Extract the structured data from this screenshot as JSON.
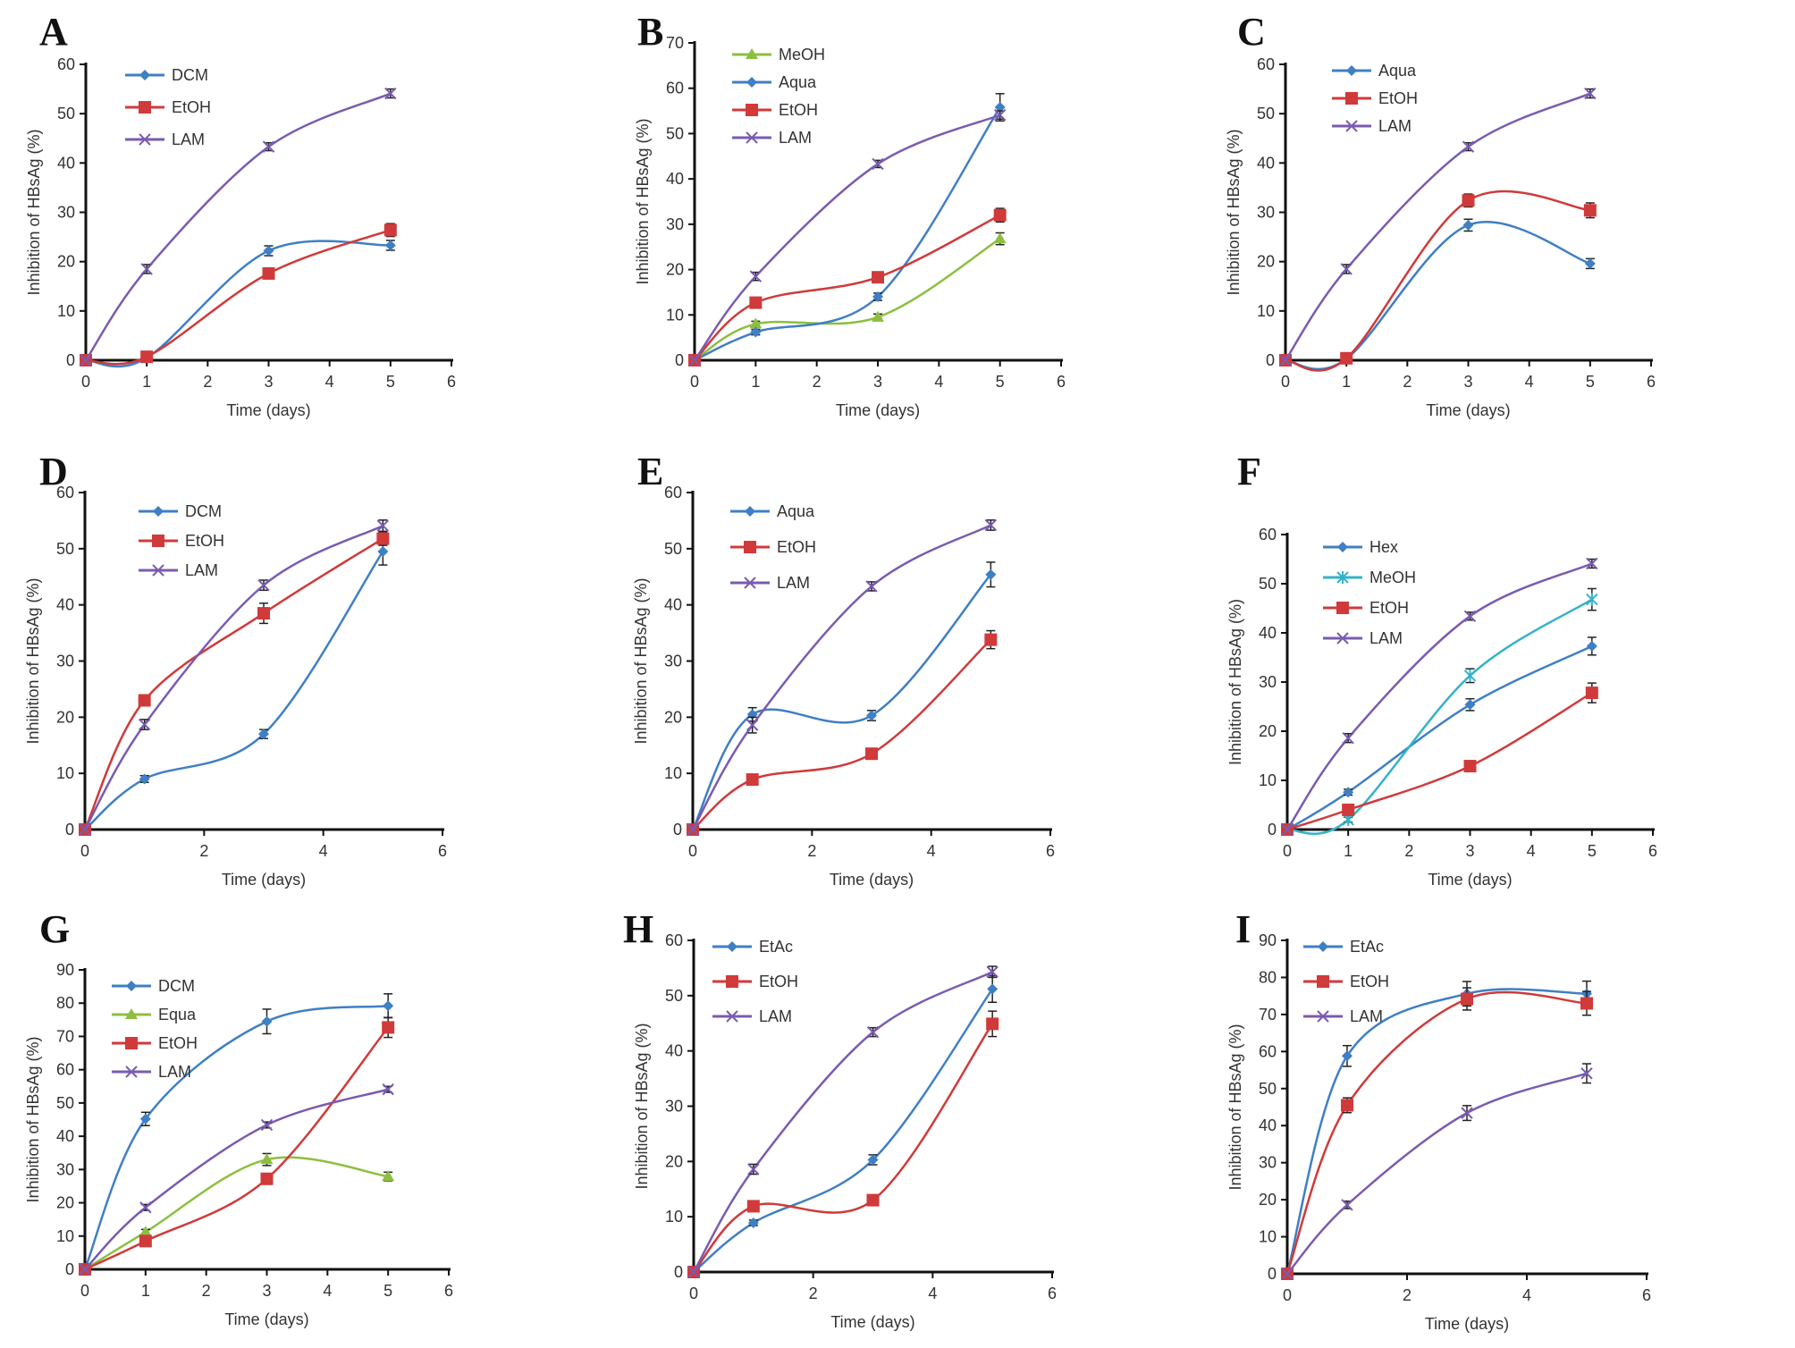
{
  "figure": {
    "series_styles": {
      "DCM": {
        "color": "#3f7fc4",
        "marker": "diamond"
      },
      "Hex": {
        "color": "#3f7fc4",
        "marker": "diamond"
      },
      "EtAc": {
        "color": "#3f7fc4",
        "marker": "diamond"
      },
      "Aqua": {
        "color": "#3f7fc4",
        "marker": "diamond"
      },
      "EtOH": {
        "color": "#d03a3a",
        "marker": "square"
      },
      "LAM": {
        "color": "#7a5bb0",
        "marker": "x"
      },
      "MeOH_green": {
        "color": "#8cbf3f",
        "marker": "triangle"
      },
      "Equa": {
        "color": "#8cbf3f",
        "marker": "triangle"
      },
      "MeOH_cyan": {
        "color": "#35b2c8",
        "marker": "star"
      }
    }
  },
  "chart_data": [
    {
      "panel": "A",
      "type": "line",
      "title": "",
      "xlabel": "Time (days)",
      "ylabel": "Inhibition of HBsAg (%)",
      "xlim": [
        0,
        6
      ],
      "ylim": [
        0,
        60
      ],
      "xticks": [
        0,
        1,
        2,
        3,
        4,
        5,
        6
      ],
      "yticks": [
        0,
        10,
        20,
        30,
        40,
        50,
        60
      ],
      "x": [
        0,
        1,
        3,
        5
      ],
      "legend_position": "top-left",
      "series": [
        {
          "name": "DCM",
          "style": "DCM",
          "values": [
            0,
            0.5,
            22.2,
            23.3
          ],
          "errors": [
            0,
            0.5,
            1.0,
            1.0
          ]
        },
        {
          "name": "EtOH",
          "style": "EtOH",
          "values": [
            0,
            0.7,
            17.6,
            26.4
          ],
          "errors": [
            0,
            0.5,
            0.8,
            1.3
          ]
        },
        {
          "name": "LAM",
          "style": "LAM",
          "values": [
            0,
            18.5,
            43.3,
            54.1
          ],
          "errors": [
            0,
            0.9,
            0.8,
            0.9
          ]
        }
      ]
    },
    {
      "panel": "B",
      "type": "line",
      "title": "",
      "xlabel": "Time (days)",
      "ylabel": "Inhibition of HBsAg (%)",
      "xlim": [
        0,
        6
      ],
      "ylim": [
        0,
        70
      ],
      "xticks": [
        0,
        1,
        2,
        3,
        4,
        5,
        6
      ],
      "yticks": [
        0,
        10,
        20,
        30,
        40,
        50,
        60,
        70
      ],
      "x": [
        0,
        1,
        3,
        5
      ],
      "legend_position": "top-left",
      "series": [
        {
          "name": "MeOH",
          "style": "MeOH_green",
          "values": [
            0,
            8.0,
            9.5,
            26.8
          ],
          "errors": [
            0,
            0.6,
            0.7,
            1.3
          ]
        },
        {
          "name": "Aqua",
          "style": "Aqua",
          "values": [
            0,
            6.2,
            14.0,
            55.8
          ],
          "errors": [
            0,
            0.6,
            0.8,
            3.0
          ]
        },
        {
          "name": "EtOH",
          "style": "EtOH",
          "values": [
            0,
            12.7,
            18.3,
            32.0
          ],
          "errors": [
            0,
            0.6,
            0.7,
            1.5
          ]
        },
        {
          "name": "LAM",
          "style": "LAM",
          "values": [
            0,
            18.5,
            43.3,
            54.1
          ],
          "errors": [
            0,
            0.9,
            0.8,
            0.9
          ]
        }
      ]
    },
    {
      "panel": "C",
      "type": "line",
      "title": "",
      "xlabel": "Time (days)",
      "ylabel": "Inhibition of HBsAg (%)",
      "xlim": [
        0,
        6
      ],
      "ylim": [
        0,
        60
      ],
      "xticks": [
        0,
        1,
        2,
        3,
        4,
        5,
        6
      ],
      "yticks": [
        0,
        10,
        20,
        30,
        40,
        50,
        60
      ],
      "x": [
        0,
        1,
        3,
        5
      ],
      "legend_position": "top-left",
      "series": [
        {
          "name": "Aqua",
          "style": "Aqua",
          "values": [
            0,
            0.3,
            27.4,
            19.6
          ],
          "errors": [
            0,
            0.3,
            1.2,
            1.0
          ]
        },
        {
          "name": "EtOH",
          "style": "EtOH",
          "values": [
            0,
            0.4,
            32.4,
            30.4
          ],
          "errors": [
            0,
            0.3,
            1.3,
            1.5
          ]
        },
        {
          "name": "LAM",
          "style": "LAM",
          "values": [
            0,
            18.5,
            43.3,
            54.1
          ],
          "errors": [
            0,
            0.9,
            0.8,
            0.9
          ]
        }
      ]
    },
    {
      "panel": "D",
      "type": "line",
      "title": "",
      "xlabel": "Time (days)",
      "ylabel": "Inhibition of HBsAg (%)",
      "xlim": [
        0,
        6
      ],
      "ylim": [
        0,
        60
      ],
      "xticks": [
        0,
        2,
        4,
        6
      ],
      "yticks": [
        0,
        10,
        20,
        30,
        40,
        50,
        60
      ],
      "x": [
        0,
        1,
        3,
        5
      ],
      "legend_position": "top-left",
      "series": [
        {
          "name": "DCM",
          "style": "DCM",
          "values": [
            0,
            9.0,
            17.0,
            49.5
          ],
          "errors": [
            0,
            0.6,
            0.8,
            2.4
          ]
        },
        {
          "name": "EtOH",
          "style": "EtOH",
          "values": [
            0,
            23.0,
            38.5,
            51.8
          ],
          "errors": [
            0,
            0.9,
            1.8,
            1.2
          ]
        },
        {
          "name": "LAM",
          "style": "LAM",
          "values": [
            0,
            18.7,
            43.5,
            54.1
          ],
          "errors": [
            0,
            0.9,
            0.9,
            1.0
          ]
        }
      ]
    },
    {
      "panel": "E",
      "type": "line",
      "title": "",
      "xlabel": "Time (days)",
      "ylabel": "Inhibition of HBsAg (%)",
      "xlim": [
        0,
        6
      ],
      "ylim": [
        0,
        60
      ],
      "xticks": [
        0,
        2,
        4,
        6
      ],
      "yticks": [
        0,
        10,
        20,
        30,
        40,
        50,
        60
      ],
      "x": [
        0,
        1,
        3,
        5
      ],
      "legend_position": "top-left",
      "series": [
        {
          "name": "Aqua",
          "style": "Aqua",
          "values": [
            0,
            20.5,
            20.3,
            45.4
          ],
          "errors": [
            0,
            1.2,
            0.9,
            2.2
          ]
        },
        {
          "name": "EtOH",
          "style": "EtOH",
          "values": [
            0,
            8.9,
            13.5,
            33.8
          ],
          "errors": [
            0,
            0.5,
            0.6,
            1.6
          ]
        },
        {
          "name": "LAM",
          "style": "LAM",
          "values": [
            0,
            18.6,
            43.3,
            54.2
          ],
          "errors": [
            0,
            1.4,
            0.8,
            0.9
          ]
        }
      ]
    },
    {
      "panel": "F",
      "type": "line",
      "title": "",
      "xlabel": "Time (days)",
      "ylabel": "Inhibition of HBsAg (%)",
      "xlim": [
        0,
        6
      ],
      "ylim": [
        0,
        60
      ],
      "xticks": [
        0,
        1,
        2,
        3,
        4,
        5,
        6
      ],
      "yticks": [
        0,
        10,
        20,
        30,
        40,
        50,
        60
      ],
      "x": [
        0,
        1,
        3,
        5
      ],
      "legend_position": "top-left",
      "series": [
        {
          "name": "Hex",
          "style": "Hex",
          "values": [
            0,
            7.6,
            25.4,
            37.3
          ],
          "errors": [
            0,
            0.6,
            1.2,
            1.8
          ]
        },
        {
          "name": "MeOH",
          "style": "MeOH_cyan",
          "values": [
            0,
            2.0,
            31.3,
            46.8
          ],
          "errors": [
            0,
            0.5,
            1.4,
            2.2
          ]
        },
        {
          "name": "EtOH",
          "style": "EtOH",
          "values": [
            0,
            4.0,
            12.9,
            27.8
          ],
          "errors": [
            0,
            0.5,
            0.7,
            2.0
          ]
        },
        {
          "name": "LAM",
          "style": "LAM",
          "values": [
            0,
            18.6,
            43.4,
            54.1
          ],
          "errors": [
            0,
            0.9,
            0.8,
            0.9
          ]
        }
      ]
    },
    {
      "panel": "G",
      "type": "line",
      "title": "",
      "xlabel": "Time (days)",
      "ylabel": "Inhibition of HBsAg (%)",
      "xlim": [
        0,
        6
      ],
      "ylim": [
        0,
        90
      ],
      "xticks": [
        0,
        1,
        2,
        3,
        4,
        5,
        6
      ],
      "yticks": [
        0,
        10,
        20,
        30,
        40,
        50,
        60,
        70,
        80,
        90
      ],
      "x": [
        0,
        1,
        3,
        5
      ],
      "legend_position": "top-left",
      "series": [
        {
          "name": "DCM",
          "style": "DCM",
          "values": [
            0,
            45.2,
            74.5,
            79.2
          ],
          "errors": [
            0,
            2.0,
            3.7,
            3.6
          ]
        },
        {
          "name": "Equa",
          "style": "Equa",
          "values": [
            0,
            11.2,
            33.0,
            27.9
          ],
          "errors": [
            0,
            0.8,
            1.8,
            1.3
          ]
        },
        {
          "name": "EtOH",
          "style": "EtOH",
          "values": [
            0,
            8.5,
            27.2,
            72.7
          ],
          "errors": [
            0,
            0.8,
            1.2,
            3.0
          ]
        },
        {
          "name": "LAM",
          "style": "LAM",
          "values": [
            0,
            18.6,
            43.4,
            54.1
          ],
          "errors": [
            0,
            0.9,
            0.9,
            0.9
          ]
        }
      ]
    },
    {
      "panel": "H",
      "type": "line",
      "title": "",
      "xlabel": "Time (days)",
      "ylabel": "Inhibition of HBsAg (%)",
      "xlim": [
        0,
        6
      ],
      "ylim": [
        0,
        60
      ],
      "xticks": [
        0,
        2,
        4,
        6
      ],
      "yticks": [
        0,
        10,
        20,
        30,
        40,
        50,
        60
      ],
      "x": [
        0,
        1,
        3,
        5
      ],
      "legend_position": "top-left",
      "series": [
        {
          "name": "EtAc",
          "style": "EtAc",
          "values": [
            0,
            8.9,
            20.3,
            51.2
          ],
          "errors": [
            0,
            0.5,
            0.9,
            2.4
          ]
        },
        {
          "name": "EtOH",
          "style": "EtOH",
          "values": [
            0,
            11.9,
            13.0,
            44.9
          ],
          "errors": [
            0,
            0.6,
            0.6,
            2.3
          ]
        },
        {
          "name": "LAM",
          "style": "LAM",
          "values": [
            0,
            18.6,
            43.4,
            54.3
          ],
          "errors": [
            0,
            0.9,
            0.8,
            1.0
          ]
        }
      ]
    },
    {
      "panel": "I",
      "type": "line",
      "title": "",
      "xlabel": "Time (days)",
      "ylabel": "Inhibition of HBsAg (%)",
      "xlim": [
        0,
        6
      ],
      "ylim": [
        0,
        90
      ],
      "xticks": [
        0,
        2,
        4,
        6
      ],
      "yticks": [
        0,
        10,
        20,
        30,
        40,
        50,
        60,
        70,
        80,
        90
      ],
      "x": [
        0,
        1,
        3,
        5
      ],
      "legend_position": "top-left",
      "series": [
        {
          "name": "EtAc",
          "style": "EtAc",
          "values": [
            0,
            58.8,
            75.6,
            75.6
          ],
          "errors": [
            0,
            2.8,
            3.3,
            3.4
          ]
        },
        {
          "name": "EtOH",
          "style": "EtOH",
          "values": [
            0,
            45.5,
            74.2,
            73.0
          ],
          "errors": [
            0,
            2.0,
            3.0,
            3.2
          ]
        },
        {
          "name": "LAM",
          "style": "LAM",
          "values": [
            0,
            18.6,
            43.4,
            54.1
          ],
          "errors": [
            0,
            1.0,
            2.0,
            2.6
          ]
        }
      ]
    }
  ]
}
